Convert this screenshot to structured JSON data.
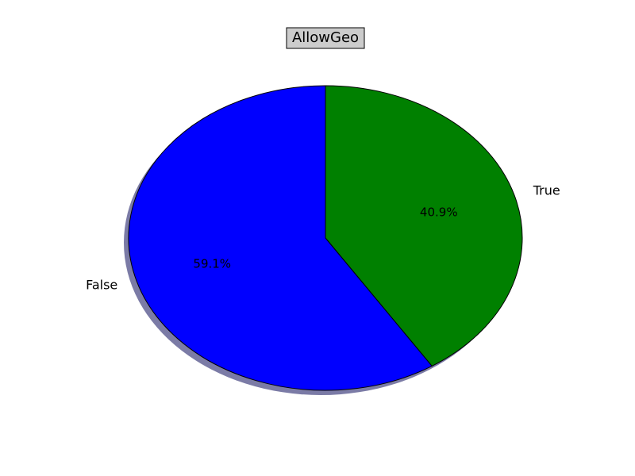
{
  "chart_data": {
    "type": "pie",
    "title": "AllowGeo",
    "categories": [
      "False",
      "True"
    ],
    "values": [
      59.1,
      40.9
    ],
    "labels": [
      "59.1%",
      "40.9%"
    ],
    "colors": [
      "#0000ff",
      "#008000"
    ],
    "title_box_color": "#cccccc",
    "shadow_color": "#7b7ba6",
    "start_angle_deg": 90,
    "direction": "clockwise-from-top: True first, then False",
    "shadow": true,
    "legend": "none"
  }
}
